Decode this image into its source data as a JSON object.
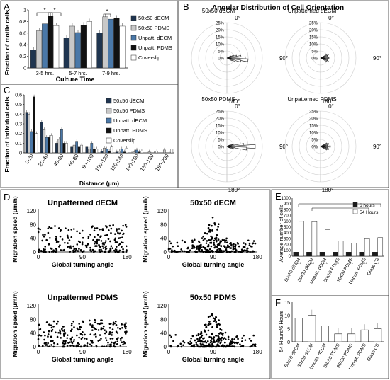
{
  "panels": {
    "A": {
      "letter": "A",
      "ylabel": "Fraction of motile cells",
      "xlabel": "Culture Time",
      "ylim": [
        0,
        1
      ],
      "yticks": [
        "0",
        "0.2",
        "0.4",
        "0.6",
        "0.8",
        "1"
      ],
      "categories": [
        "3-5 hrs.",
        "5-7 hrs.",
        "7-9 hrs."
      ],
      "series": [
        {
          "name": "50x50 dECM",
          "color": "#1f3550",
          "values": [
            0.31,
            0.52,
            0.6
          ]
        },
        {
          "name": "50x50 PDMS",
          "color": "#c8c8c8",
          "values": [
            0.64,
            0.72,
            0.88
          ]
        },
        {
          "name": "Unpatt. dECM",
          "color": "#4a78a8",
          "values": [
            0.76,
            0.61,
            0.84
          ]
        },
        {
          "name": "Unpatt. PDMS",
          "color": "#111111",
          "values": [
            0.9,
            0.74,
            0.86
          ]
        },
        {
          "name": "Coverslip",
          "color": "#ffffff",
          "values": [
            0.73,
            0.8,
            0.72
          ]
        }
      ],
      "significance": [
        "*",
        "*",
        "*"
      ]
    },
    "B": {
      "letter": "B",
      "title": "Angular Distribution of Cell Orientation",
      "ring_labels": [
        "25%",
        "20%",
        "15%",
        "10%",
        "5%",
        "0%"
      ],
      "angle_labels": [
        "0°",
        "90°",
        "180°"
      ],
      "plots": [
        {
          "title": "50x50 dECM",
          "rays": [
            3,
            5,
            7,
            10,
            13,
            15,
            10,
            6,
            4
          ]
        },
        {
          "title": "Unpatterned dECM",
          "rays": [
            6,
            5,
            4,
            5,
            6,
            5,
            4,
            5,
            6
          ]
        },
        {
          "title": "50x50 PDMS",
          "rays": [
            2,
            4,
            6,
            12,
            20,
            14,
            6,
            4,
            2
          ]
        },
        {
          "title": "Unpatterned PDMS",
          "rays": [
            5,
            6,
            4,
            5,
            7,
            5,
            4,
            6,
            5
          ]
        }
      ]
    },
    "C": {
      "letter": "C",
      "ylabel": "Fraction of individual cells",
      "xlabel": "Distance (μm)",
      "ylim": [
        0,
        0.6
      ],
      "yticks": [
        "0",
        "0.1",
        "0.2",
        "0.3",
        "0.4",
        "0.5",
        "0.6"
      ],
      "categories": [
        "0-20",
        "20-40",
        "40-60",
        "60-80",
        "80-100",
        "100-120",
        "120-140",
        "140-160",
        "160-180",
        "180-200"
      ],
      "series": [
        {
          "name": "50x50 dECM",
          "color": "#1f3550",
          "values": [
            0.42,
            0.32,
            0.1,
            0.06,
            0.06,
            0.02,
            0.01,
            0.0,
            0.0,
            0.0
          ]
        },
        {
          "name": "50x50 PDMS",
          "color": "#c8c8c8",
          "values": [
            0.4,
            0.24,
            0.14,
            0.08,
            0.04,
            0.05,
            0.02,
            0.01,
            0.01,
            0.03
          ]
        },
        {
          "name": "Unpatt. dECM",
          "color": "#4a78a8",
          "values": [
            0.22,
            0.16,
            0.24,
            0.12,
            0.1,
            0.04,
            0.04,
            0.03,
            0.0,
            0.0
          ]
        },
        {
          "name": "Unpatt. PDMS",
          "color": "#111111",
          "values": [
            0.58,
            0.16,
            0.1,
            0.06,
            0.04,
            0.02,
            0.01,
            0.01,
            0.0,
            0.0
          ]
        },
        {
          "name": "Coverslip",
          "color": "#ffffff",
          "values": [
            0.2,
            0.18,
            0.1,
            0.08,
            0.04,
            0.06,
            0.05,
            0.02,
            0.02,
            0.04
          ]
        }
      ]
    },
    "D": {
      "letter": "D",
      "ylabel": "Migration speed (μm/h)",
      "xlabel": "Global turning angle",
      "yticks": [
        "0",
        "40",
        "80",
        "120"
      ],
      "xticks": [
        "0",
        "90",
        "180"
      ],
      "plots": [
        {
          "title": "Unpatterned dECM",
          "mode": "uniform"
        },
        {
          "title": "50x50 dECM",
          "mode": "peak"
        },
        {
          "title": "Unpatterned PDMS",
          "mode": "uniform"
        },
        {
          "title": "50x50 PDMS",
          "mode": "peak"
        }
      ]
    },
    "E": {
      "letter": "E",
      "ylabel": "Average number of cells",
      "ylim": [
        0,
        1000
      ],
      "yticks": [
        "0",
        "100",
        "200",
        "300",
        "400",
        "500",
        "600",
        "700",
        "800",
        "900",
        "1000"
      ],
      "categories": [
        "50x50 dECM",
        "30x30 dECM",
        "Unpatt. dECM",
        "50x50 PDMS",
        "30x30 PDMS",
        "Unpatt. PDMS",
        "Glass CS"
      ],
      "series": [
        {
          "name": "6 hours",
          "color": "#1a1a1a",
          "values": [
            70,
            70,
            70,
            70,
            70,
            70,
            70
          ]
        },
        {
          "name": "54 Hours",
          "color": "#ffffff",
          "values": [
            600,
            595,
            455,
            265,
            225,
            300,
            320
          ]
        }
      ],
      "significance_labels": [
        "***",
        "***",
        "***",
        "*",
        "**",
        "***",
        "**"
      ]
    },
    "F": {
      "letter": "F",
      "ylabel": "54 Hours/6 Hours",
      "ylim": [
        0,
        15
      ],
      "yticks": [
        "0",
        "5",
        "10",
        "15"
      ],
      "categories": [
        "50x50 dECM",
        "30x30 dECM",
        "Unpatt. dECM",
        "50x50 PDMS",
        "30x30 PDMS",
        "Unpatt. PDMS",
        "Glass CS"
      ],
      "values": [
        9,
        10,
        6,
        3,
        3,
        4.5,
        5
      ]
    }
  }
}
